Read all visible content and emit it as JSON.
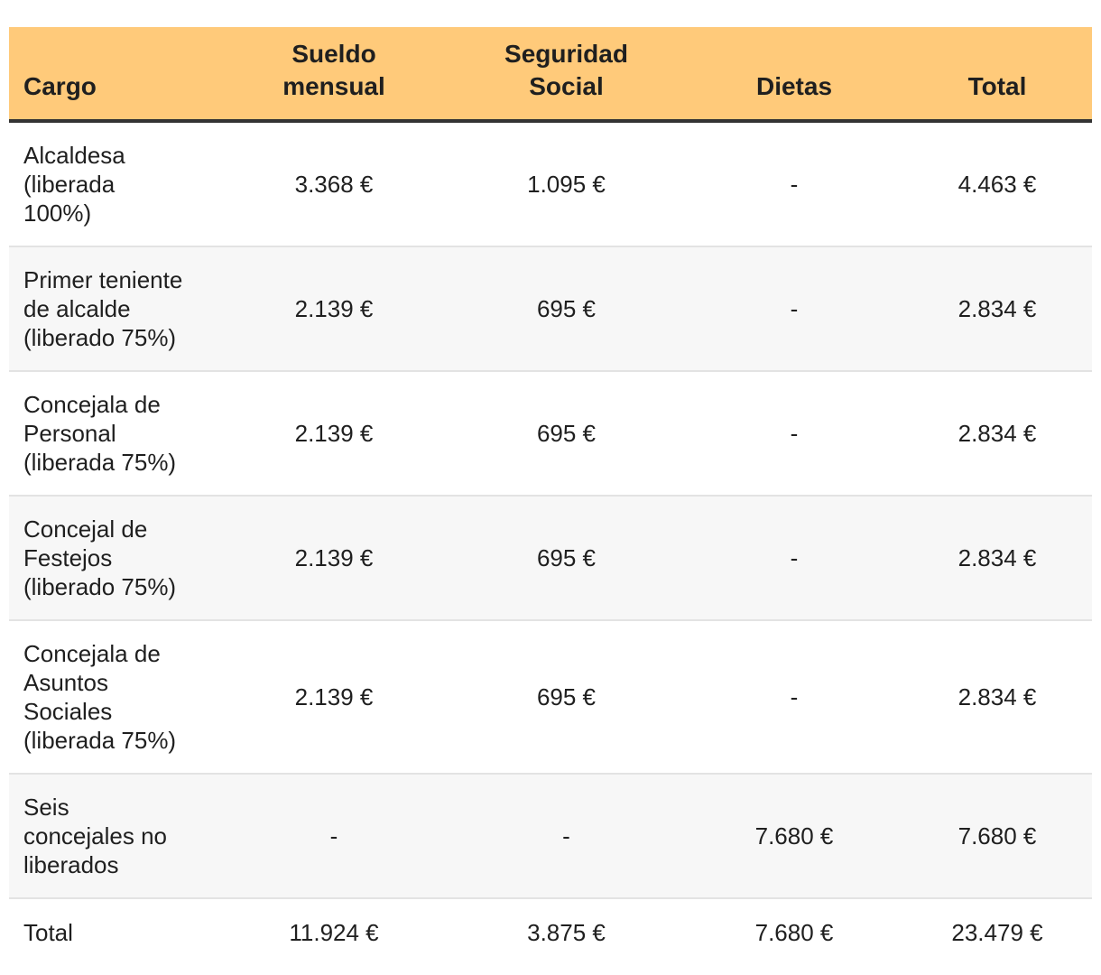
{
  "headers": {
    "cargo": "Cargo",
    "sueldo_l1": "Sueldo",
    "sueldo_l2": "mensual",
    "seg_l1": "Seguridad",
    "seg_l2": "Social",
    "dietas": "Dietas",
    "total": "Total"
  },
  "rows": [
    {
      "cargo": [
        "Alcaldesa",
        "(liberada",
        "100%)"
      ],
      "sueldo": "3.368 €",
      "seguridad": "1.095 €",
      "dietas": "-",
      "total": "4.463 €"
    },
    {
      "cargo": [
        "Primer teniente",
        "de alcalde",
        "(liberado 75%)"
      ],
      "sueldo": "2.139 €",
      "seguridad": "695 €",
      "dietas": "-",
      "total": "2.834 €"
    },
    {
      "cargo": [
        "Concejala de",
        "Personal",
        "(liberada 75%)"
      ],
      "sueldo": "2.139 €",
      "seguridad": "695 €",
      "dietas": "-",
      "total": "2.834 €"
    },
    {
      "cargo": [
        "Concejal de",
        "Festejos",
        "(liberado 75%)"
      ],
      "sueldo": "2.139 €",
      "seguridad": "695 €",
      "dietas": "-",
      "total": "2.834 €"
    },
    {
      "cargo": [
        "Concejala de",
        "Asuntos",
        "Sociales",
        "(liberada 75%)"
      ],
      "sueldo": "2.139 €",
      "seguridad": "695 €",
      "dietas": "-",
      "total": "2.834 €"
    },
    {
      "cargo": [
        "Seis",
        "concejales no",
        "liberados"
      ],
      "sueldo": "-",
      "seguridad": "-",
      "dietas": "7.680 €",
      "total": "7.680 €"
    }
  ],
  "totals": {
    "label": "Total",
    "sueldo": "11.924 €",
    "seguridad": "3.875 €",
    "dietas": "7.680 €",
    "total": "23.479 €"
  },
  "colors": {
    "header_bg": "#ffca7a",
    "header_rule": "#333333",
    "alt_row_bg": "#f7f7f7",
    "row_divider": "#e3e3e3"
  }
}
